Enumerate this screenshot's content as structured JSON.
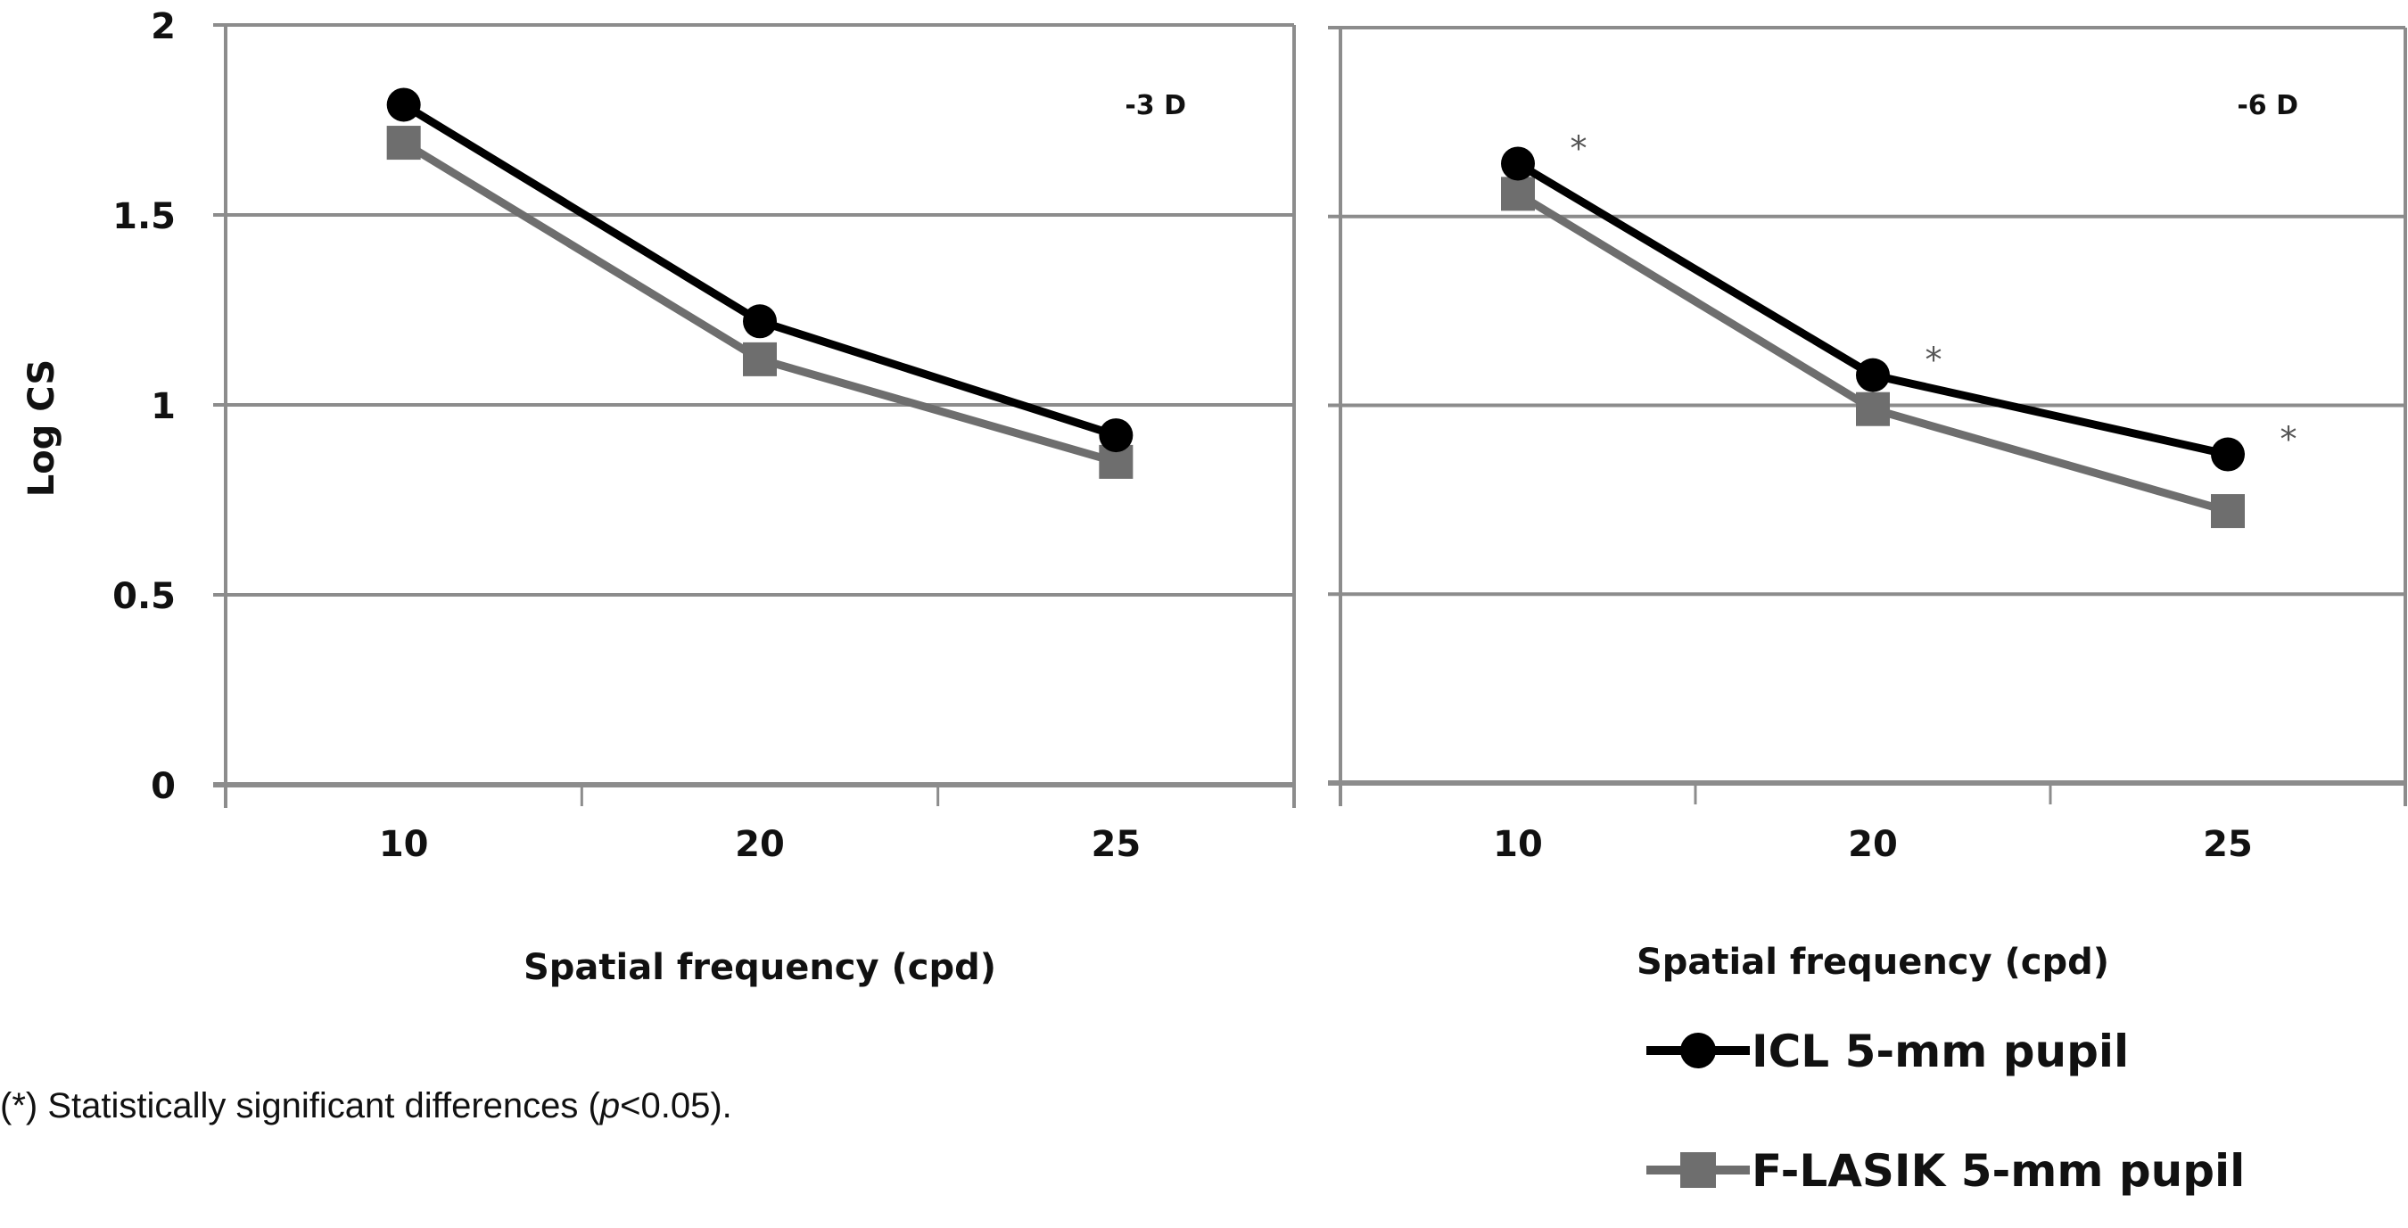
{
  "chart_data": {
    "type": "line",
    "ylabel": "Log CS",
    "ylim": [
      0,
      2
    ],
    "yticks": [
      "0",
      "0.5",
      "1",
      "1.5",
      "2"
    ],
    "grid": true,
    "legend_position": "bottom-right",
    "series_styles": [
      {
        "name": "ICL 5-mm pupil",
        "color": "#000000",
        "marker": "circle"
      },
      {
        "name": "F-LASIK 5-mm pupil",
        "color": "#6e6e6e",
        "marker": "square"
      }
    ],
    "panels": [
      {
        "label": "-3 D",
        "xlabel": "Spatial frequency (cpd)",
        "categories": [
          "10",
          "20",
          "25"
        ],
        "series": [
          {
            "name": "ICL 5-mm pupil",
            "values": [
              1.79,
              1.22,
              0.92
            ]
          },
          {
            "name": "F-LASIK 5-mm pupil",
            "values": [
              1.69,
              1.12,
              0.85
            ]
          }
        ],
        "significant": [
          false,
          false,
          false
        ]
      },
      {
        "label": "-6 D",
        "xlabel": "Spatial frequency (cpd)",
        "categories": [
          "10",
          "20",
          "25"
        ],
        "series": [
          {
            "name": "ICL 5-mm pupil",
            "values": [
              1.64,
              1.08,
              0.87
            ]
          },
          {
            "name": "F-LASIK 5-mm pupil",
            "values": [
              1.56,
              0.99,
              0.72
            ]
          }
        ],
        "significant": [
          true,
          true,
          true
        ],
        "significance_mark": "*"
      }
    ]
  },
  "footnote": {
    "prefix": "(*) Statistically significant differences (",
    "italic": "p",
    "suffix": "<0.05)."
  },
  "colors": {
    "grid": "#8c8c8c",
    "icl": "#000000",
    "lasik": "#6e6e6e"
  }
}
